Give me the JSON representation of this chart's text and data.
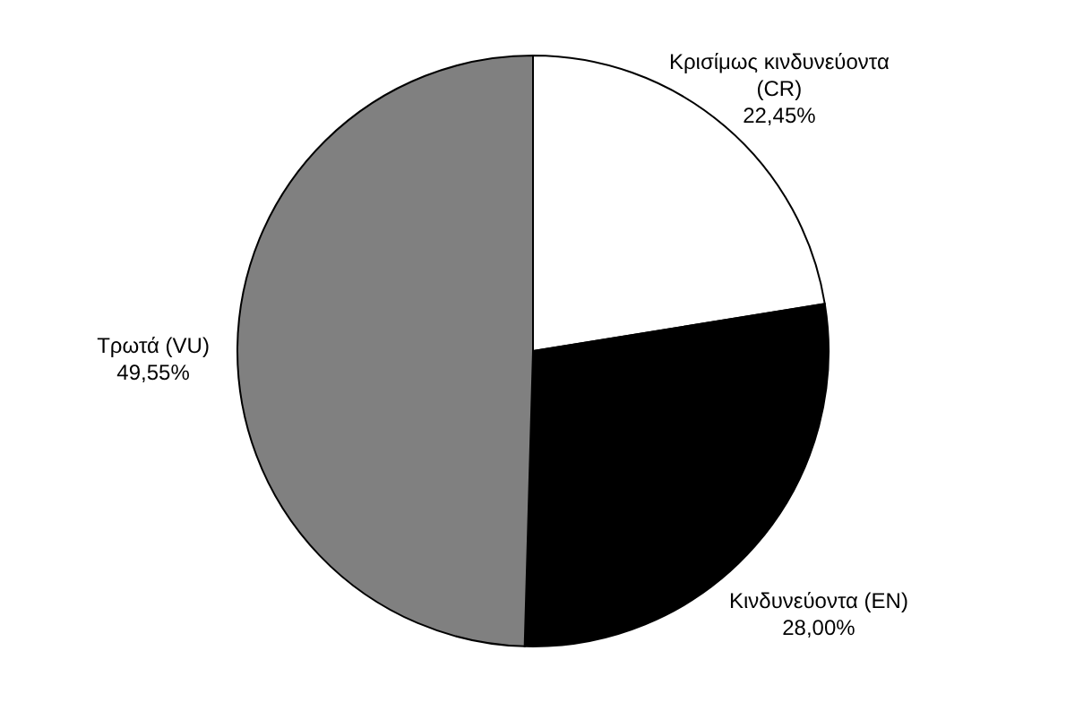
{
  "chart_data": {
    "type": "pie",
    "categories": [
      "Κρισίμως κινδυνεύοντα (CR)",
      "Κινδυνεύοντα (EN)",
      "Τρωτά (VU)"
    ],
    "values": [
      22.45,
      28.0,
      49.55
    ],
    "colors": [
      "#ffffff",
      "#000000",
      "#808080"
    ],
    "value_labels": [
      "22,45%",
      "28,00%",
      "49,55%"
    ]
  }
}
